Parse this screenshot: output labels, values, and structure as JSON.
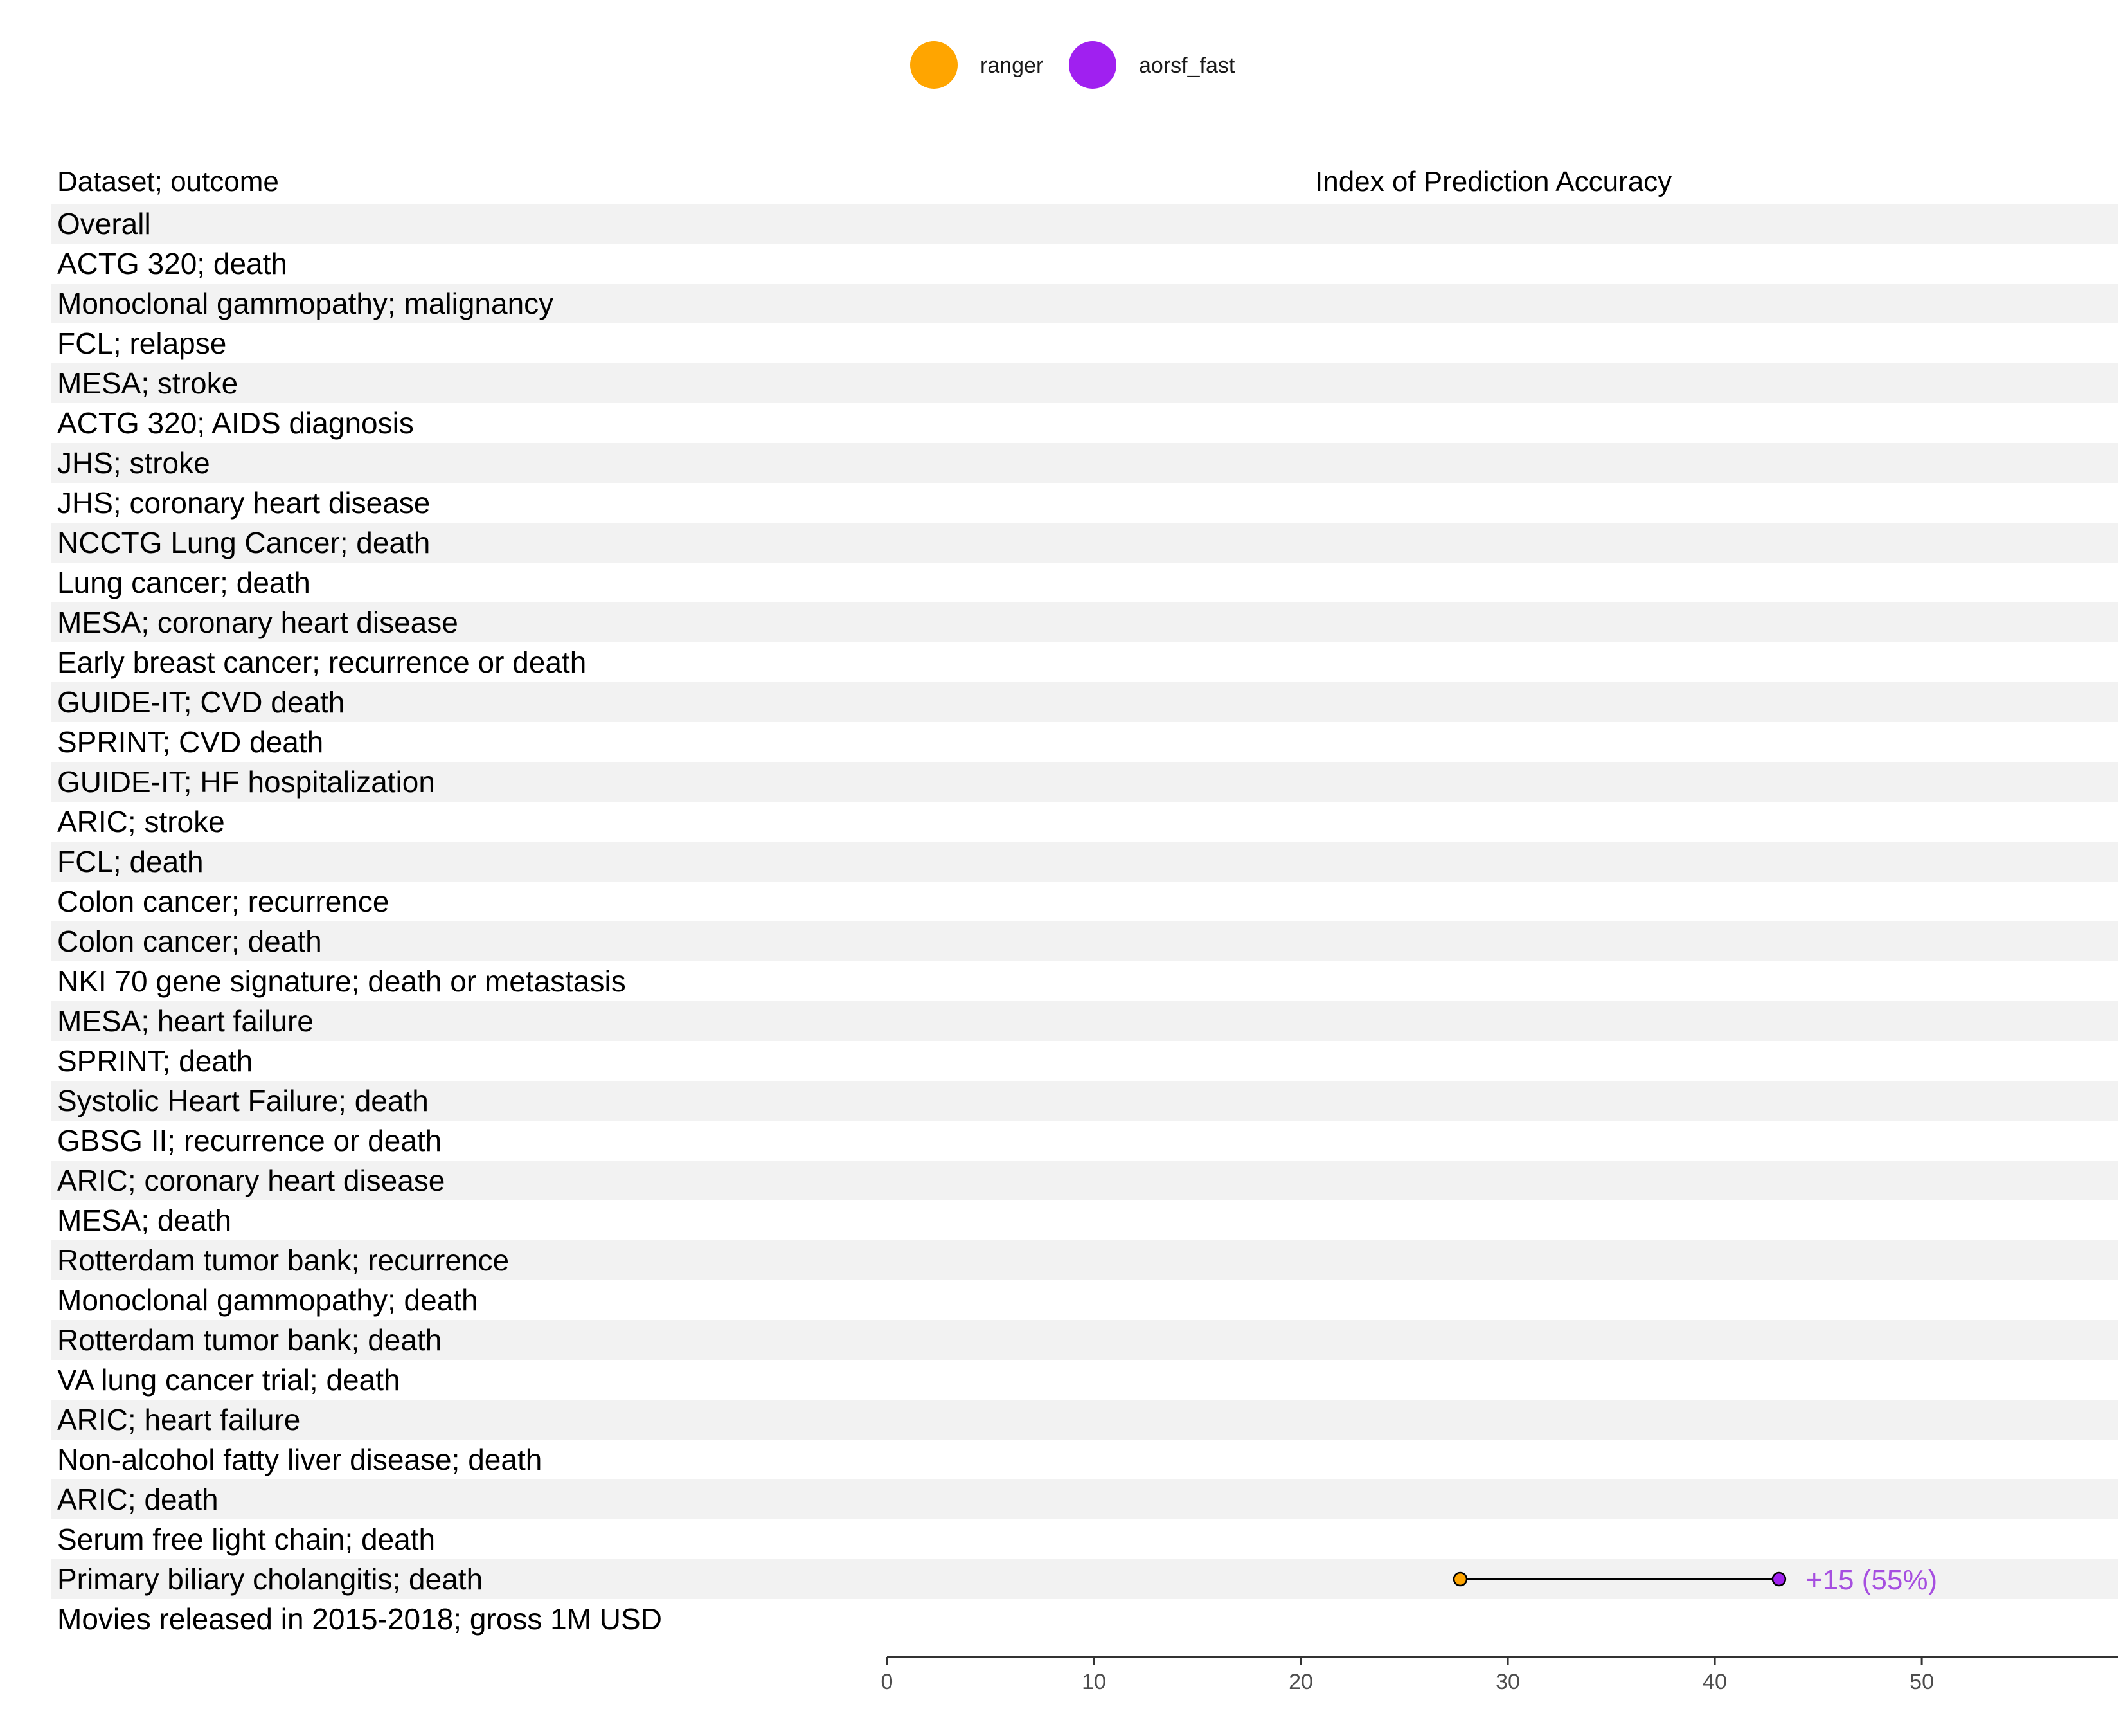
{
  "colors": {
    "ranger": "#FFA500",
    "aorsf_fast": "#A020F0",
    "stripe": "#F2F2F2",
    "diff_label": "#A64FE0"
  },
  "legend": {
    "items": [
      {
        "label": "ranger",
        "color": "#FFA500"
      },
      {
        "label": "aorsf_fast",
        "color": "#A020F0"
      }
    ]
  },
  "headers": {
    "left": "Dataset; outcome",
    "right": "Index of Prediction Accuracy"
  },
  "chart_data": {
    "type": "dumbbell",
    "xlabel": "Index of Prediction Accuracy",
    "xlim": [
      0,
      59.5
    ],
    "x_ticks": [
      0,
      10,
      20,
      30,
      40,
      50
    ],
    "rows": [
      "Overall",
      "ACTG 320; death",
      "Monoclonal gammopathy; malignancy",
      "FCL; relapse",
      "MESA; stroke",
      "ACTG 320; AIDS diagnosis",
      "JHS; stroke",
      "JHS; coronary heart disease",
      "NCCTG Lung Cancer; death",
      "Lung cancer; death",
      "MESA; coronary heart disease",
      "Early breast cancer; recurrence or death",
      "GUIDE-IT; CVD death",
      "SPRINT; CVD death",
      "GUIDE-IT; HF hospitalization",
      "ARIC; stroke",
      "FCL; death",
      "Colon cancer; recurrence",
      "Colon cancer; death",
      "NKI 70 gene signature; death or metastasis",
      "MESA; heart failure",
      "SPRINT; death",
      "Systolic Heart Failure; death",
      "GBSG II; recurrence or death",
      "ARIC; coronary heart disease",
      "MESA; death",
      "Rotterdam tumor bank; recurrence",
      "Monoclonal gammopathy; death",
      "Rotterdam tumor bank; death",
      "VA lung cancer trial; death",
      "ARIC; heart failure",
      "Non-alcohol fatty liver disease; death",
      "ARIC; death",
      "Serum free light chain; death",
      "Primary biliary cholangitis; death",
      "Movies released in 2015-2018; gross 1M USD"
    ],
    "series": [
      {
        "name": "ranger",
        "points": [
          {
            "row": "Primary biliary cholangitis; death",
            "value": 27.7
          }
        ]
      },
      {
        "name": "aorsf_fast",
        "points": [
          {
            "row": "Primary biliary cholangitis; death",
            "value": 43.1
          }
        ]
      }
    ],
    "annotations": [
      {
        "row": "Primary biliary cholangitis; death",
        "text": "+15 (55%)"
      }
    ]
  }
}
